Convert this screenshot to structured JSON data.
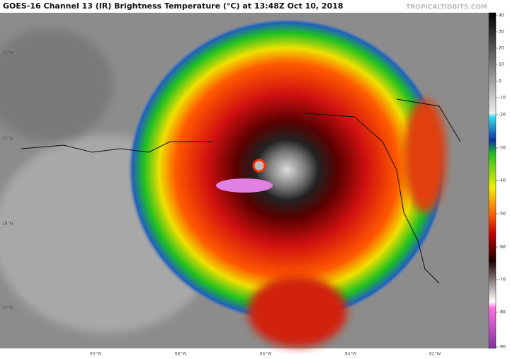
{
  "title": "GOES-16 Channel 13 (IR) Brightness Temperature (°C) at 13:48Z Oct 10, 2018",
  "watermark": "TROPICALTIDBITS.COM",
  "latitude_labels": [
    "32°N",
    "30°N",
    "28°N",
    "26°N"
  ],
  "longitude_labels": [
    "90°W",
    "88°W",
    "86°W",
    "84°W",
    "82°W"
  ],
  "colorbar_ticks": [
    40,
    30,
    20,
    10,
    0,
    -10,
    -20,
    -30,
    -40,
    -50,
    -60,
    -70,
    -80,
    -90
  ]
}
